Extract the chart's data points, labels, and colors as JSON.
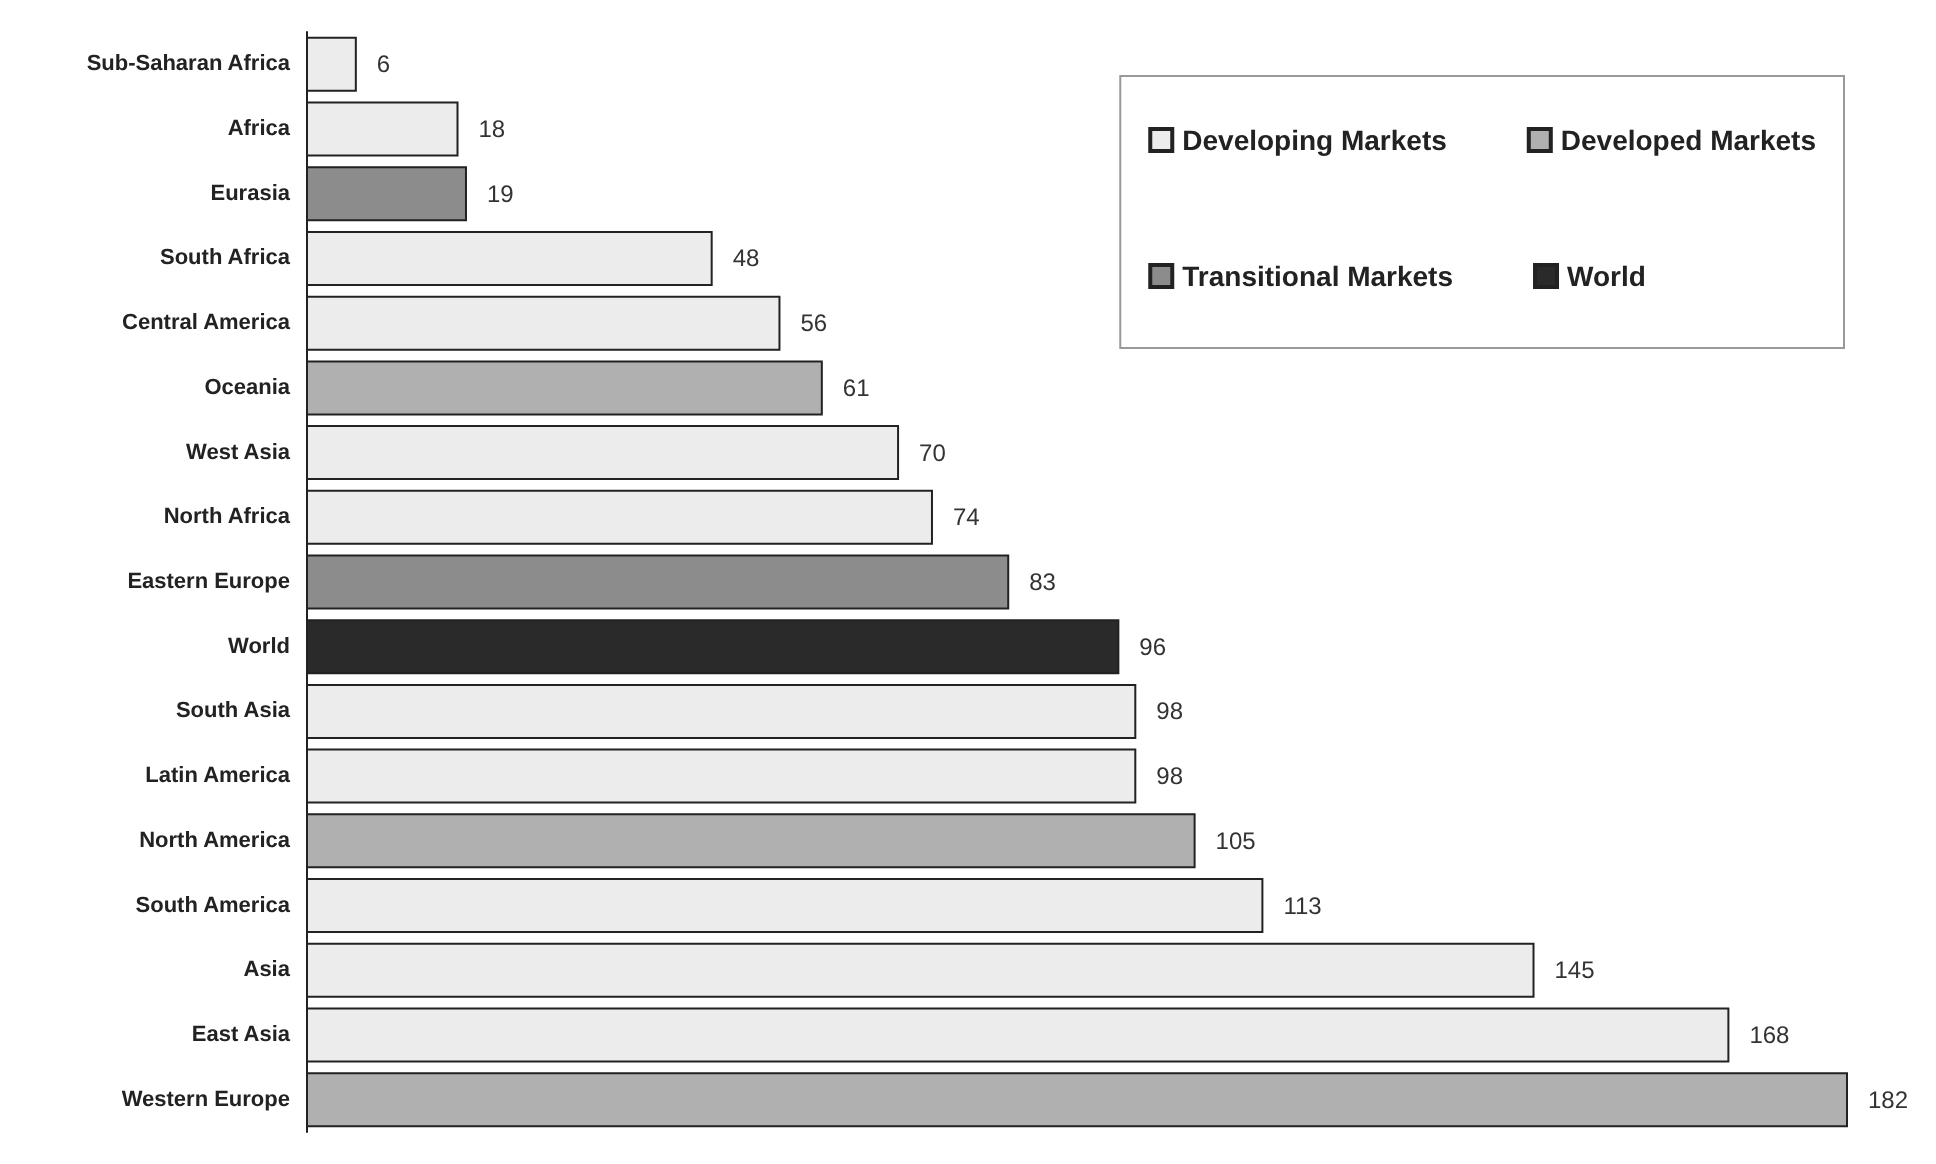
{
  "chart_data": {
    "type": "bar",
    "orientation": "horizontal",
    "categories": [
      "Sub-Saharan Africa",
      "Africa",
      "Eurasia",
      "South Africa",
      "Central America",
      "Oceania",
      "West Asia",
      "North Africa",
      "Eastern Europe",
      "World",
      "South Asia",
      "Latin America",
      "North America",
      "South America",
      "Asia",
      "East Asia",
      "Western Europe"
    ],
    "series": [
      {
        "name": "Developing Markets",
        "color": "#ececec",
        "values": [
          6,
          18,
          null,
          48,
          56,
          null,
          70,
          74,
          null,
          null,
          98,
          98,
          null,
          113,
          145,
          168,
          null
        ]
      },
      {
        "name": "Developed Markets",
        "color": "#b0b0b0",
        "values": [
          null,
          null,
          null,
          null,
          null,
          61,
          null,
          null,
          null,
          null,
          null,
          null,
          105,
          null,
          null,
          null,
          182
        ]
      },
      {
        "name": "Transitional Markets",
        "color": "#8c8c8c",
        "values": [
          null,
          null,
          19,
          null,
          null,
          null,
          null,
          null,
          83,
          null,
          null,
          null,
          null,
          null,
          null,
          null,
          null
        ]
      },
      {
        "name": "World",
        "color": "#2a2a2a",
        "values": [
          null,
          null,
          null,
          null,
          null,
          null,
          null,
          null,
          null,
          96,
          null,
          null,
          null,
          null,
          null,
          null,
          null
        ]
      }
    ],
    "data_labels": true,
    "legend": "top right",
    "tick_labels": "y"
  }
}
